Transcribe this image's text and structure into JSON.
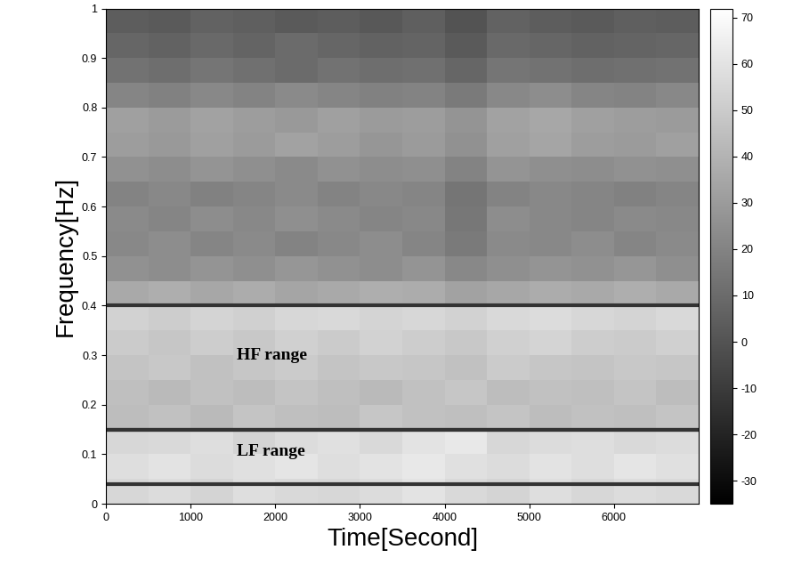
{
  "chart_data": {
    "type": "heatmap",
    "x_label": "Time[Second]",
    "y_label": "Frequency[Hz]",
    "xlim": [
      0,
      7000
    ],
    "xticks": [
      0,
      1000,
      2000,
      3000,
      4000,
      5000,
      6000
    ],
    "ylim": [
      0,
      1
    ],
    "yticks": [
      0,
      0.1,
      0.2,
      0.3,
      0.4,
      0.5,
      0.6,
      0.7,
      0.8,
      0.9,
      1
    ],
    "x_edges": [
      0,
      500,
      1000,
      1500,
      2000,
      2500,
      3000,
      3500,
      4000,
      4500,
      5000,
      5500,
      6000,
      6500,
      7000
    ],
    "y_edges": [
      0,
      0.05,
      0.1,
      0.15,
      0.2,
      0.25,
      0.3,
      0.35,
      0.4,
      0.45,
      0.5,
      0.55,
      0.6,
      0.65,
      0.7,
      0.75,
      0.8,
      0.85,
      0.9,
      0.95,
      1
    ],
    "cells": [
      [
        55,
        57,
        54,
        58,
        56,
        55,
        57,
        60,
        56,
        54,
        58,
        55,
        57,
        56
      ],
      [
        58,
        60,
        57,
        59,
        61,
        58,
        60,
        62,
        59,
        57,
        60,
        58,
        61,
        59
      ],
      [
        55,
        56,
        58,
        54,
        57,
        59,
        56,
        60,
        62,
        55,
        57,
        58,
        56,
        57
      ],
      [
        44,
        46,
        43,
        47,
        45,
        44,
        48,
        46,
        45,
        47,
        44,
        46,
        45,
        47
      ],
      [
        45,
        43,
        46,
        44,
        47,
        45,
        43,
        46,
        48,
        44,
        46,
        45,
        47,
        44
      ],
      [
        47,
        49,
        46,
        48,
        50,
        47,
        49,
        48,
        46,
        50,
        48,
        47,
        49,
        48
      ],
      [
        50,
        48,
        51,
        49,
        52,
        50,
        53,
        51,
        49,
        52,
        54,
        51,
        50,
        52
      ],
      [
        53,
        51,
        54,
        52,
        55,
        56,
        54,
        55,
        53,
        56,
        57,
        55,
        54,
        56
      ],
      [
        36,
        38,
        35,
        37,
        34,
        36,
        38,
        37,
        33,
        35,
        37,
        36,
        38,
        36
      ],
      [
        26,
        24,
        27,
        25,
        28,
        26,
        24,
        27,
        22,
        25,
        27,
        26,
        28,
        25
      ],
      [
        22,
        24,
        21,
        23,
        20,
        22,
        24,
        21,
        16,
        23,
        22,
        24,
        21,
        23
      ],
      [
        23,
        21,
        24,
        22,
        25,
        23,
        21,
        22,
        15,
        24,
        22,
        21,
        23,
        22
      ],
      [
        20,
        22,
        19,
        21,
        23,
        20,
        22,
        21,
        14,
        20,
        22,
        21,
        19,
        21
      ],
      [
        26,
        24,
        27,
        25,
        23,
        26,
        24,
        25,
        20,
        27,
        25,
        24,
        26,
        25
      ],
      [
        31,
        29,
        32,
        30,
        33,
        31,
        28,
        30,
        26,
        32,
        34,
        31,
        30,
        32
      ],
      [
        32,
        30,
        33,
        31,
        29,
        32,
        30,
        31,
        27,
        33,
        35,
        32,
        31,
        30
      ],
      [
        21,
        19,
        22,
        20,
        23,
        21,
        19,
        20,
        16,
        22,
        24,
        21,
        20,
        22
      ],
      [
        13,
        11,
        14,
        12,
        10,
        13,
        11,
        12,
        8,
        14,
        13,
        11,
        12,
        13
      ],
      [
        8,
        6,
        9,
        7,
        10,
        8,
        6,
        7,
        3,
        9,
        8,
        6,
        7,
        8
      ],
      [
        4,
        3,
        6,
        5,
        3,
        4,
        2,
        5,
        0,
        6,
        4,
        3,
        5,
        4
      ]
    ],
    "color_range": [
      -35,
      72
    ],
    "color_ticks": [
      -30,
      -20,
      -10,
      0,
      10,
      20,
      30,
      40,
      50,
      60,
      70
    ],
    "bands": [
      {
        "label": "HF range",
        "low": 0.15,
        "high": 0.4
      },
      {
        "label": "LF range",
        "low": 0.04,
        "high": 0.15
      }
    ]
  }
}
